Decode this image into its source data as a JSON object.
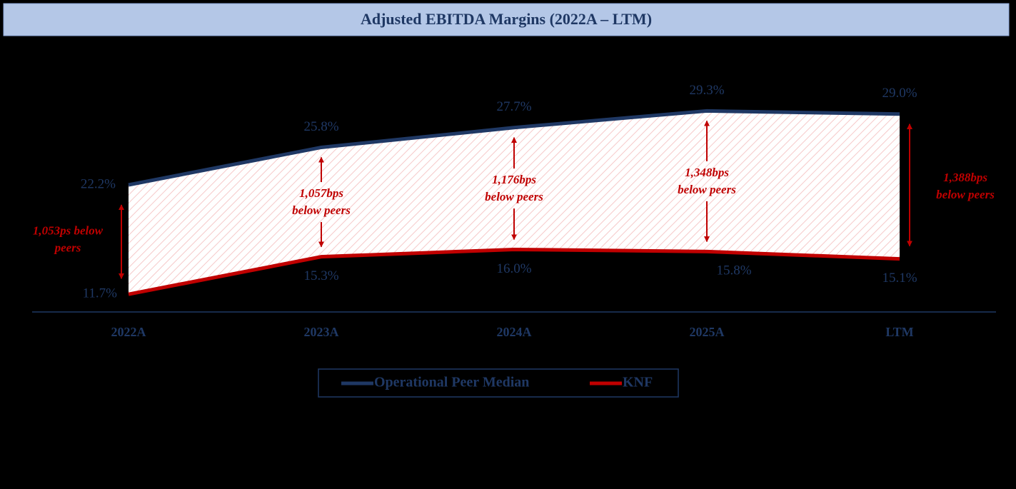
{
  "chart_data": {
    "type": "line",
    "title": "Adjusted EBITDA Margins (2022A – LTM)",
    "categories": [
      "2022A",
      "2023A",
      "2024A",
      "2025A",
      "LTM"
    ],
    "series": [
      {
        "name": "Operational Peer Median",
        "color": "#1f3864",
        "values": [
          22.2,
          25.8,
          27.7,
          29.3,
          29.0
        ],
        "value_labels": [
          "22.2%",
          "25.8%",
          "27.7%",
          "29.3%",
          "29.0%"
        ]
      },
      {
        "name": "KNF",
        "color": "#c00000",
        "values": [
          11.7,
          15.3,
          16.0,
          15.8,
          15.1
        ],
        "value_labels": [
          "11.7%",
          "15.3%",
          "16.0%",
          "15.8%",
          "15.1%"
        ]
      }
    ],
    "annotations": [
      [
        "1,053ps below",
        "peers"
      ],
      [
        "1,057bps",
        "below peers"
      ],
      [
        "1,176bps",
        "below peers"
      ],
      [
        "1,348bps",
        "below peers"
      ],
      [
        "1,388bps",
        "below peers"
      ]
    ],
    "ylim": [
      10,
      32
    ]
  }
}
